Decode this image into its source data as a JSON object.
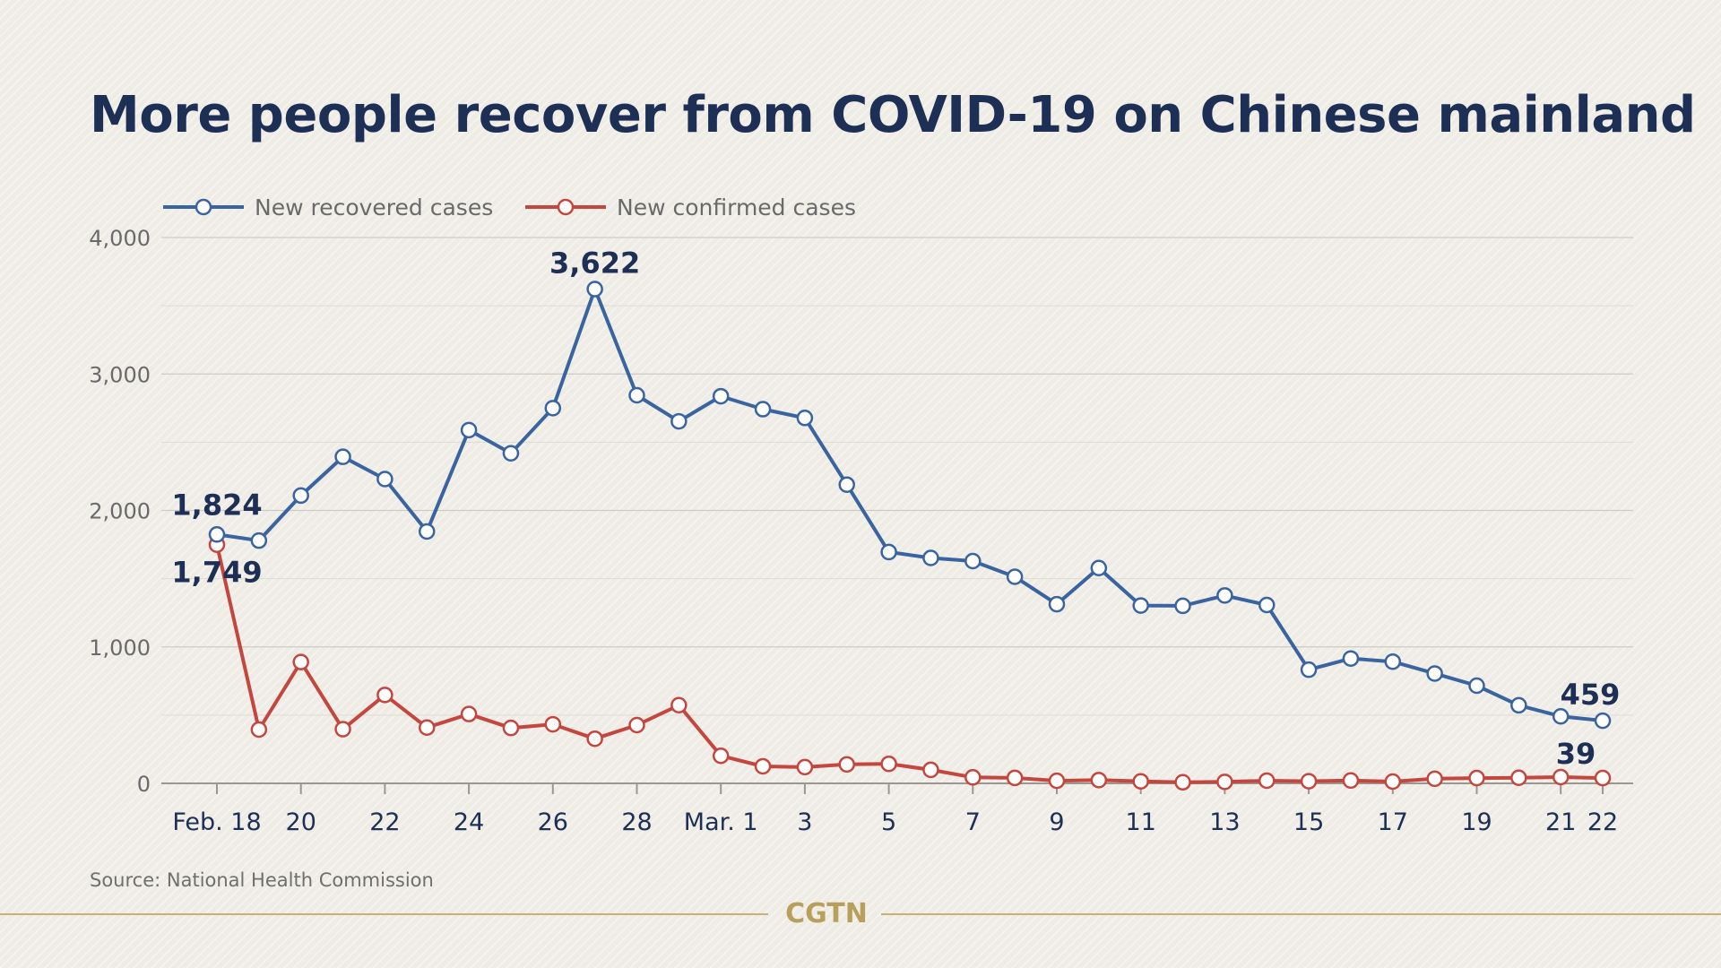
{
  "title": "More people recover from COVID-19 on Chinese mainland",
  "source": "Source: National Health Commission",
  "logo": "CGTN",
  "colors": {
    "recovered": "#3a64a0",
    "confirmed": "#c4473f",
    "title": "#1e2f56",
    "gold": "#c7b174"
  },
  "chart_data": {
    "type": "line",
    "title": "More people recover from COVID-19 on Chinese mainland",
    "xlabel": "",
    "ylabel": "",
    "ylim": [
      0,
      4000
    ],
    "yticks": [
      0,
      1000,
      2000,
      3000,
      4000
    ],
    "ytick_labels": [
      "0",
      "1,000",
      "2,000",
      "3,000",
      "4,000"
    ],
    "x": [
      "Feb. 18",
      "Feb. 19",
      "Feb. 20",
      "Feb. 21",
      "Feb. 22",
      "Feb. 23",
      "Feb. 24",
      "Feb. 25",
      "Feb. 26",
      "Feb. 27",
      "Feb. 28",
      "Feb. 29",
      "Mar. 1",
      "Mar. 2",
      "Mar. 3",
      "Mar. 4",
      "Mar. 5",
      "Mar. 6",
      "Mar. 7",
      "Mar. 8",
      "Mar. 9",
      "Mar. 10",
      "Mar. 11",
      "Mar. 12",
      "Mar. 13",
      "Mar. 14",
      "Mar. 15",
      "Mar. 16",
      "Mar. 17",
      "Mar. 18",
      "Mar. 19",
      "Mar. 20",
      "Mar. 21",
      "Mar. 22"
    ],
    "xtick_labels": [
      {
        "index": 0,
        "label": "Feb. 18"
      },
      {
        "index": 2,
        "label": "20"
      },
      {
        "index": 4,
        "label": "22"
      },
      {
        "index": 6,
        "label": "24"
      },
      {
        "index": 8,
        "label": "26"
      },
      {
        "index": 10,
        "label": "28"
      },
      {
        "index": 12,
        "label": "Mar. 1"
      },
      {
        "index": 14,
        "label": "3"
      },
      {
        "index": 16,
        "label": "5"
      },
      {
        "index": 18,
        "label": "7"
      },
      {
        "index": 20,
        "label": "9"
      },
      {
        "index": 22,
        "label": "11"
      },
      {
        "index": 24,
        "label": "13"
      },
      {
        "index": 26,
        "label": "15"
      },
      {
        "index": 28,
        "label": "17"
      },
      {
        "index": 30,
        "label": "19"
      },
      {
        "index": 32,
        "label": "21"
      },
      {
        "index": 33,
        "label": "22"
      }
    ],
    "grid": true,
    "legend_position": "top-left",
    "series": [
      {
        "name": "New recovered cases",
        "color": "#3a64a0",
        "values": [
          1824,
          1779,
          2109,
          2393,
          2230,
          1846,
          2589,
          2419,
          2750,
          3622,
          2844,
          2653,
          2837,
          2742,
          2678,
          2189,
          1695,
          1652,
          1629,
          1514,
          1313,
          1578,
          1303,
          1301,
          1377,
          1307,
          833,
          915,
          892,
          805,
          716,
          572,
          491,
          459
        ]
      },
      {
        "name": "New confirmed cases",
        "color": "#c4473f",
        "values": [
          1749,
          394,
          889,
          397,
          648,
          409,
          508,
          406,
          433,
          327,
          427,
          573,
          202,
          125,
          119,
          139,
          143,
          99,
          44,
          40,
          19,
          24,
          15,
          8,
          11,
          20,
          16,
          21,
          13,
          34,
          39,
          41,
          46,
          39
        ]
      }
    ],
    "annotations": [
      {
        "series": 0,
        "index": 0,
        "text": "1,824"
      },
      {
        "series": 1,
        "index": 0,
        "text": "1,749"
      },
      {
        "series": 0,
        "index": 9,
        "text": "3,622"
      },
      {
        "series": 0,
        "index": 33,
        "text": "459"
      },
      {
        "series": 1,
        "index": 33,
        "text": "39"
      }
    ]
  }
}
